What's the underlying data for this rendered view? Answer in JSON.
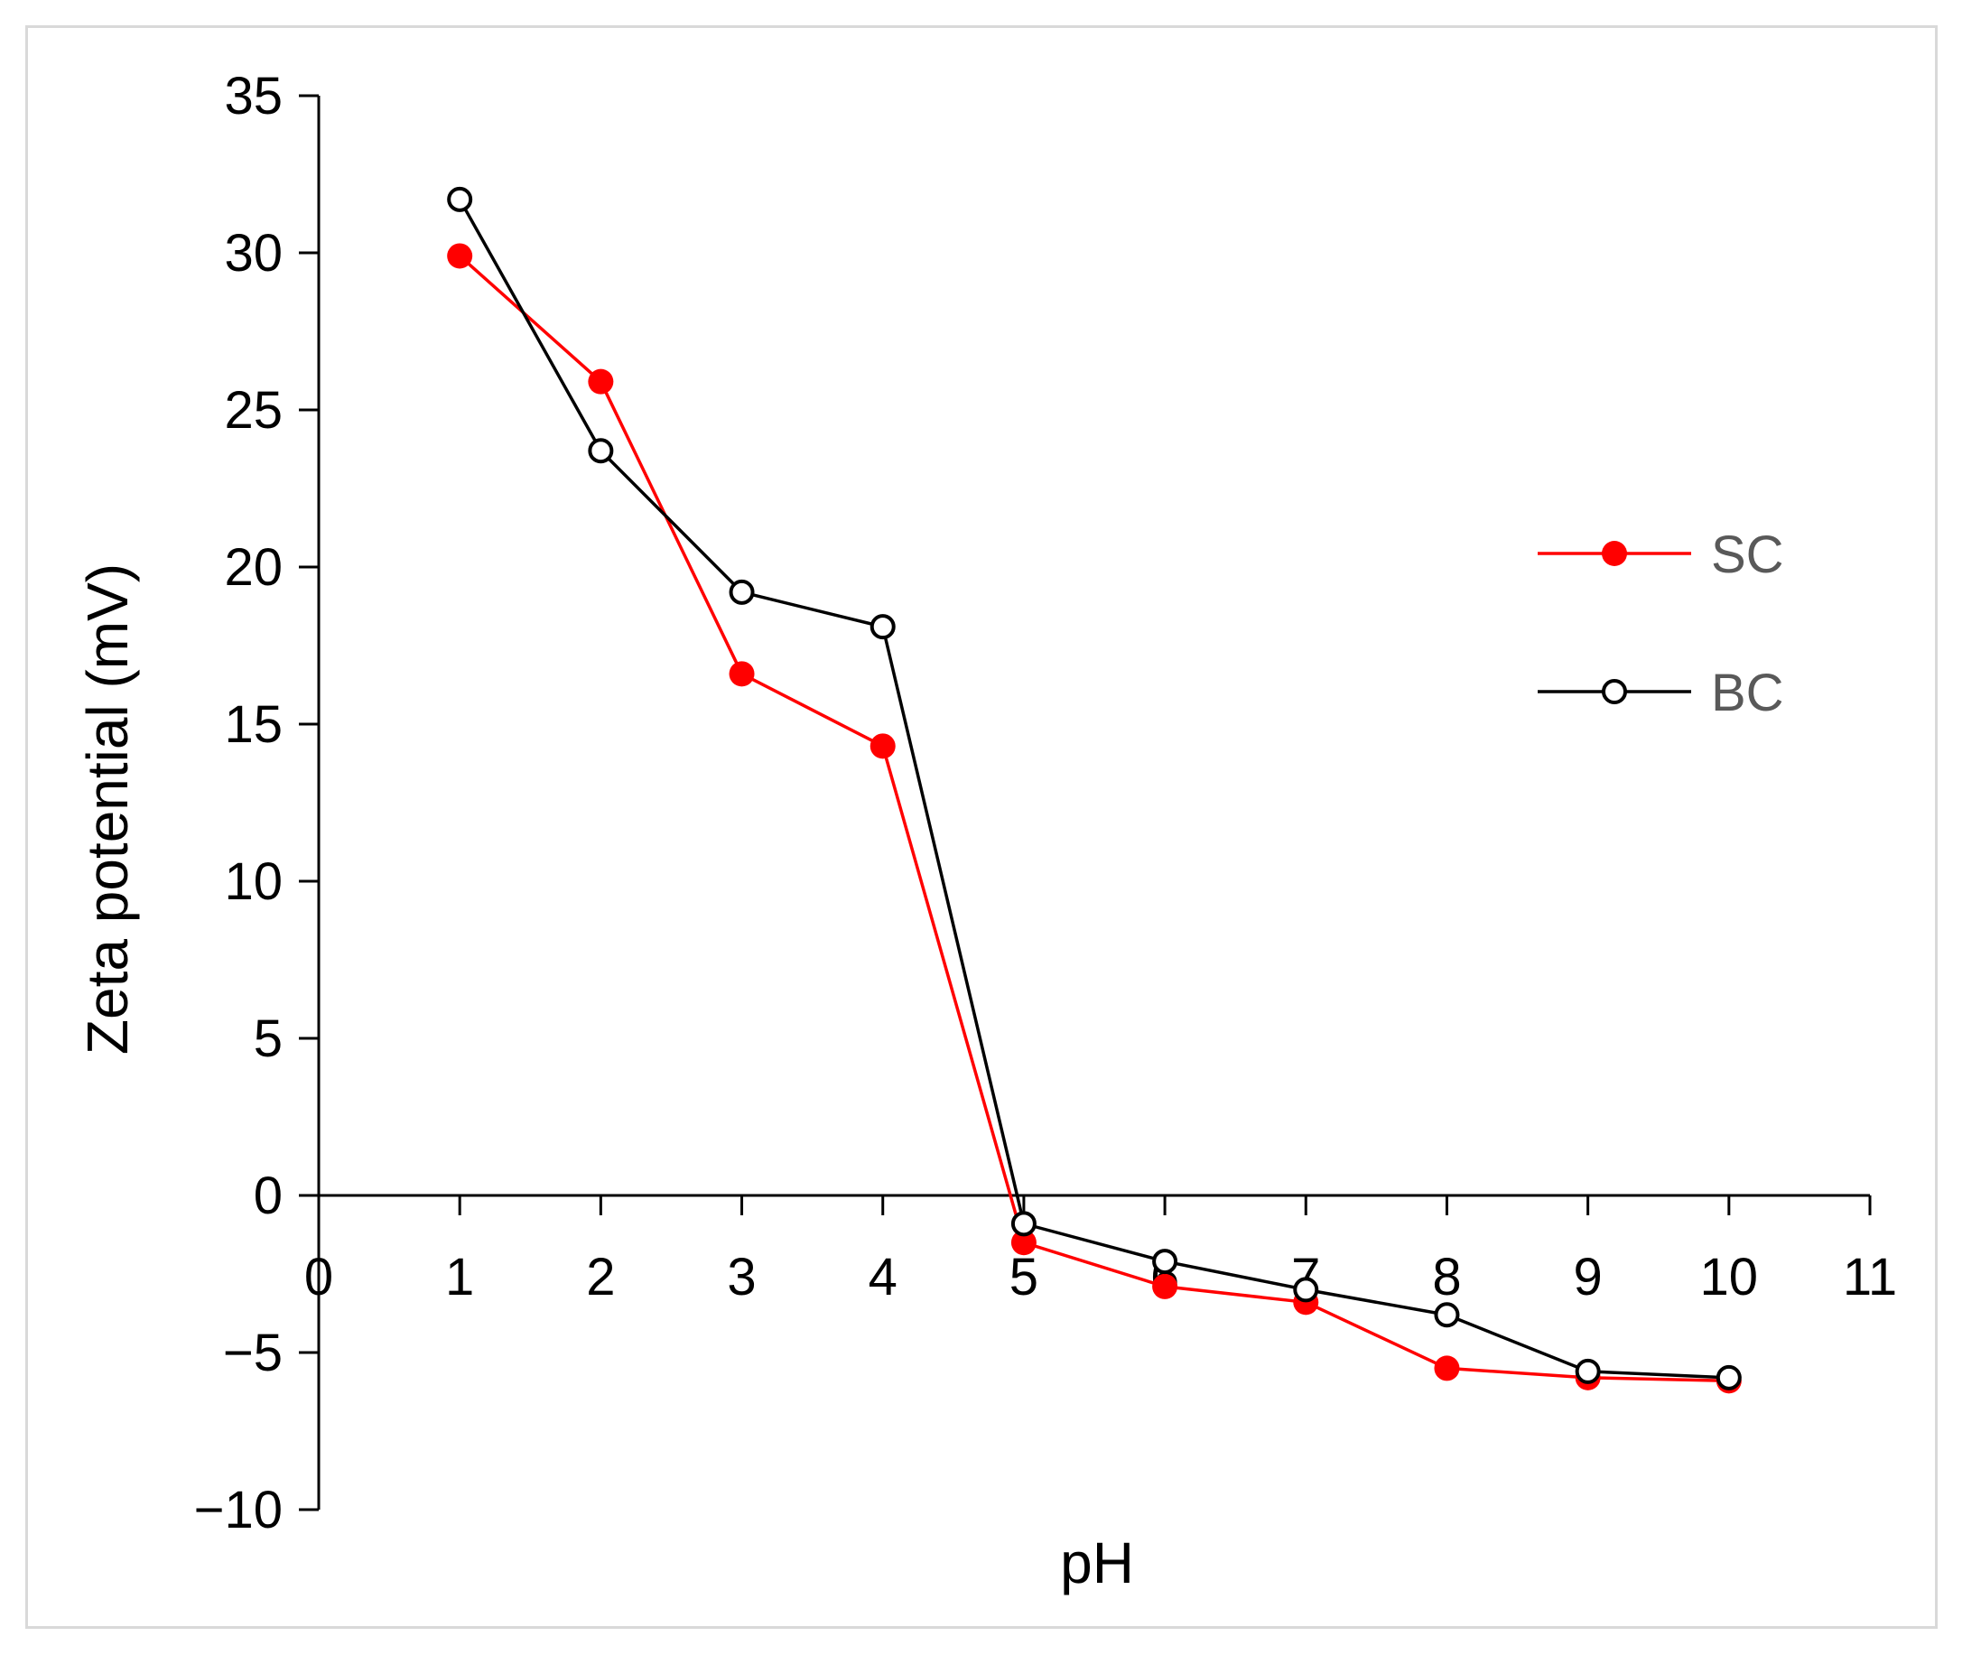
{
  "chart_data": {
    "type": "line",
    "title": "",
    "xlabel": "pH",
    "ylabel": "Zeta potential (mV)",
    "xlim": [
      0,
      11
    ],
    "ylim": [
      -10,
      35
    ],
    "xticks": [
      0,
      1,
      2,
      3,
      4,
      5,
      6,
      7,
      8,
      9,
      10,
      11
    ],
    "yticks": [
      -10,
      -5,
      0,
      5,
      10,
      15,
      20,
      25,
      30,
      35
    ],
    "ytick_labels": [
      "−10",
      "−5",
      "0",
      "5",
      "10",
      "15",
      "20",
      "25",
      "30",
      "35"
    ],
    "legend_position": "right",
    "series": [
      {
        "name": "SC",
        "color": "#ff0000",
        "marker": "filled-circle",
        "x": [
          1,
          2,
          3,
          4,
          5,
          6,
          7,
          8,
          9,
          10
        ],
        "y": [
          29.9,
          25.9,
          16.6,
          14.3,
          -1.5,
          -2.9,
          -3.4,
          -5.5,
          -5.8,
          -5.9
        ]
      },
      {
        "name": "BC",
        "color": "#000000",
        "marker": "open-circle",
        "x": [
          1,
          2,
          3,
          4,
          5,
          6,
          7,
          8,
          9,
          10
        ],
        "y": [
          31.7,
          23.7,
          19.2,
          18.1,
          -0.9,
          -2.1,
          -3.0,
          -3.8,
          -5.6,
          -5.8
        ]
      }
    ]
  }
}
